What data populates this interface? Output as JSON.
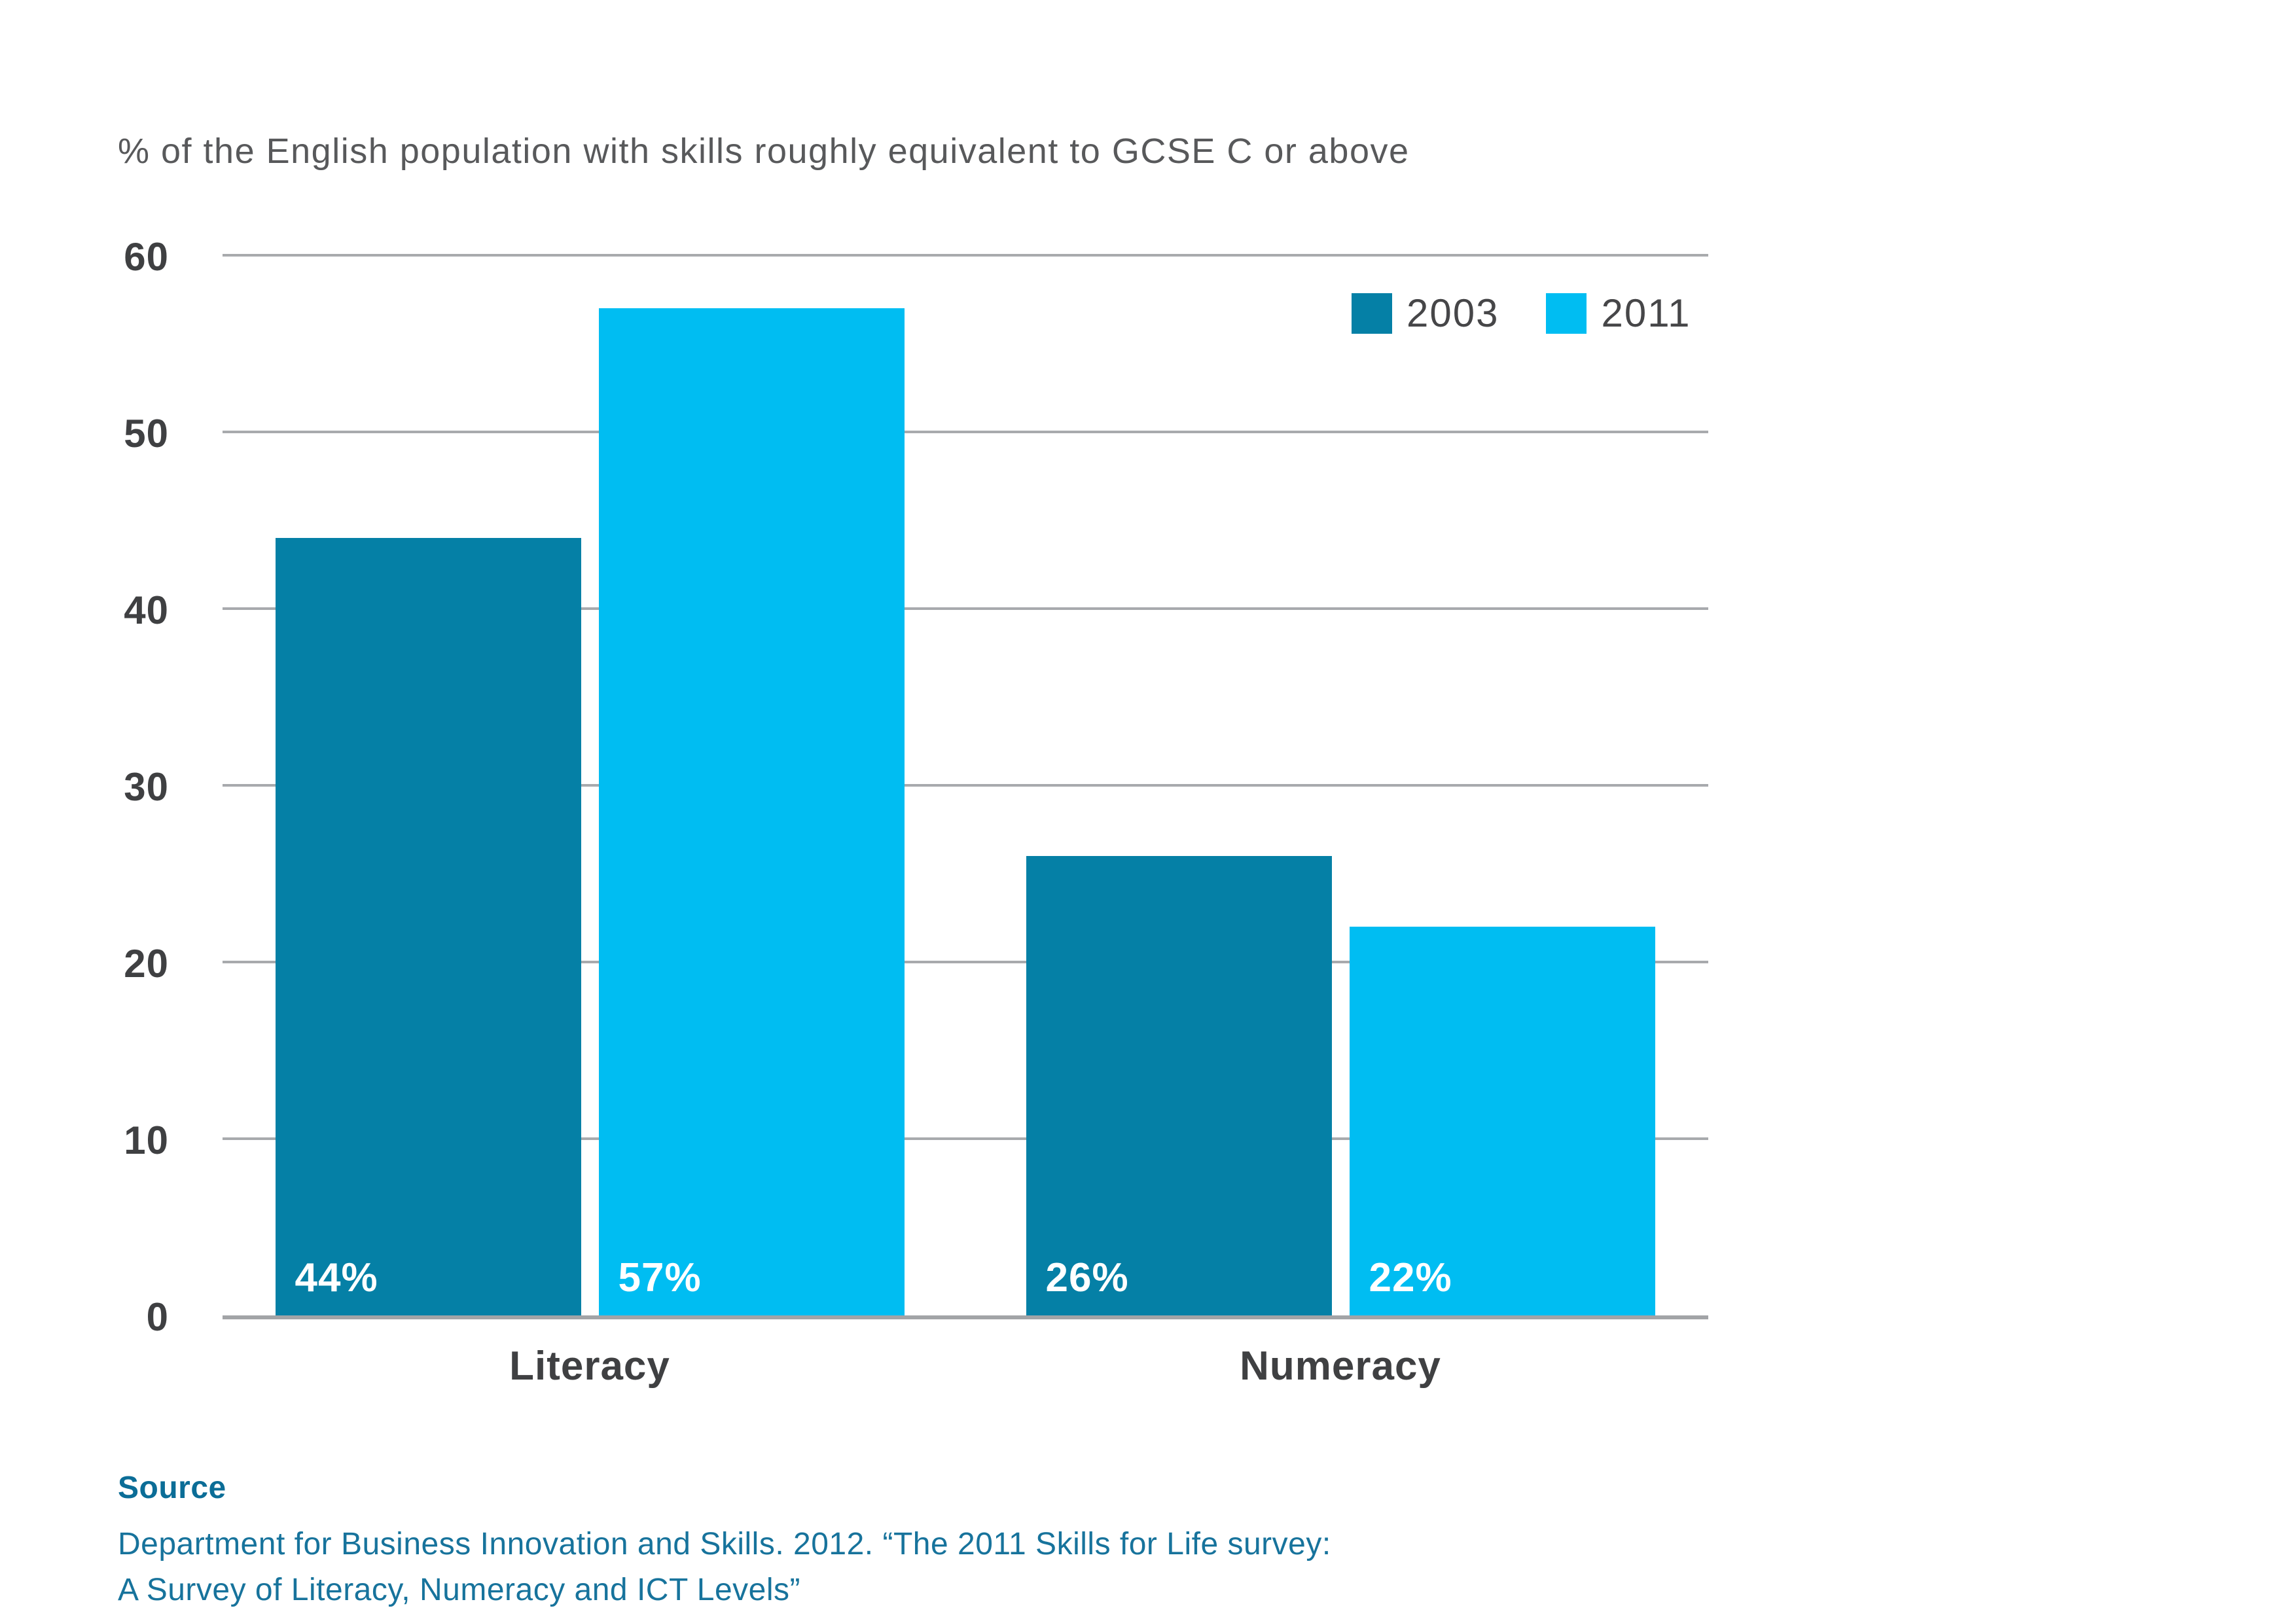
{
  "title": "% of the English population with skills roughly equivalent to GCSE C or above",
  "legend": {
    "items": [
      {
        "label": "2003",
        "color": "#0580A6"
      },
      {
        "label": "2011",
        "color": "#00BDF2"
      }
    ]
  },
  "chart_data": {
    "type": "bar",
    "title": "% of the English population with skills roughly equivalent to GCSE C or above",
    "categories": [
      "Literacy",
      "Numeracy"
    ],
    "series": [
      {
        "name": "2003",
        "color": "#0580A6",
        "values": [
          44,
          26
        ],
        "value_labels": [
          "44%",
          "26%"
        ]
      },
      {
        "name": "2011",
        "color": "#00BDF2",
        "values": [
          57,
          22
        ],
        "value_labels": [
          "57%",
          "22%"
        ]
      }
    ],
    "xlabel": "",
    "ylabel": "",
    "ylim": [
      0,
      60
    ],
    "yticks": [
      0,
      10,
      20,
      30,
      40,
      50,
      60
    ],
    "grid": "horizontal",
    "gridline_color": "#A8AAAD",
    "legend_position": "top-right",
    "value_label_color": "#ffffff"
  },
  "source": {
    "heading": "Source",
    "lines": [
      "Department for Business Innovation and Skills. 2012. “The 2011 Skills for Life survey:",
      "A Survey of Literacy, Numeracy and ICT Levels”"
    ]
  }
}
